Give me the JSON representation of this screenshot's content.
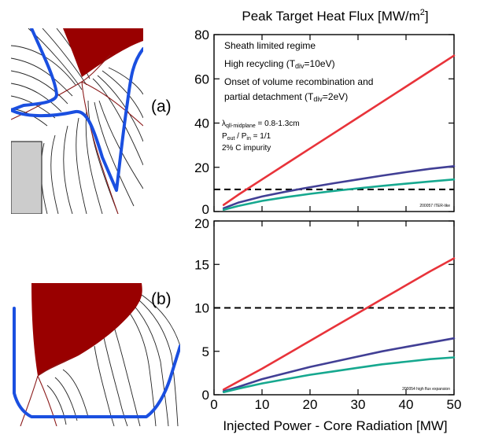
{
  "figure": {
    "title": "Peak Target Heat Flux [MW/m",
    "title_sup": "2",
    "title_close": "]",
    "xlabel": "Injected Power - Core Radiation [MW]"
  },
  "panels": {
    "a": {
      "label": "(a)"
    },
    "b": {
      "label": "(b)"
    }
  },
  "chart_data": [
    {
      "type": "line",
      "panel": "a",
      "xlim": [
        0,
        50
      ],
      "ylim": [
        0,
        80
      ],
      "xticks": [
        0,
        10,
        20,
        30,
        40,
        50
      ],
      "yticks": [
        0,
        20,
        40,
        60,
        80
      ],
      "grid": false,
      "reference_line": {
        "y": 10,
        "style": "dashed"
      },
      "legend_placement": "top-left",
      "series": [
        {
          "name": "Sheath limited regime",
          "color": "#e8333a",
          "x": [
            2,
            5,
            10,
            15,
            20,
            25,
            30,
            35,
            40,
            45,
            50
          ],
          "values": [
            3,
            7.5,
            14.5,
            21.5,
            28.5,
            35.5,
            42.5,
            49.5,
            56.5,
            63.5,
            70.5
          ]
        },
        {
          "name": "High recycling (Tdiv=10eV)",
          "color": "#413f95",
          "x": [
            2,
            5,
            10,
            15,
            20,
            25,
            30,
            35,
            40,
            45,
            50
          ],
          "values": [
            1.5,
            4,
            6.8,
            9,
            11,
            12.8,
            14.5,
            16.2,
            17.8,
            19.3,
            20.5
          ]
        },
        {
          "name": "Onset of volume recombination and partial detachment (Tdiv=2eV)",
          "color": "#16a88f",
          "x": [
            2,
            5,
            10,
            15,
            20,
            25,
            30,
            35,
            40,
            45,
            50
          ],
          "values": [
            0.8,
            2.5,
            4.8,
            6.5,
            8,
            9.3,
            10.5,
            11.6,
            12.6,
            13.6,
            14.5
          ]
        }
      ],
      "legend": {
        "sheath": "Sheath limited regime",
        "high_prefix": "High recycling (T",
        "high_sub": "div",
        "high_suffix": "=10eV)",
        "onset_line1": "Onset of volume recombination and",
        "onset_prefix": "partial detachment (T",
        "onset_sub": "div",
        "onset_suffix": "=2eV)"
      },
      "params": {
        "lambda_sym": "λ",
        "lambda_sub": "qll-midplane",
        "lambda_val": " = 0.8-1.3cm",
        "p_out": "P",
        "p_out_sub": "out",
        "p_mid": " / P",
        "p_in_sub": "in",
        "p_val": " = 1/1",
        "impurity": "2% C impurity"
      },
      "tag": "200057 ITER-like"
    },
    {
      "type": "line",
      "panel": "b",
      "xlim": [
        0,
        50
      ],
      "ylim": [
        0,
        20
      ],
      "xticks": [
        0,
        10,
        20,
        30,
        40,
        50
      ],
      "xtick_labels": [
        "0",
        "10",
        "20",
        "30",
        "40",
        "50"
      ],
      "yticks": [
        0,
        5,
        10,
        15,
        20
      ],
      "grid": false,
      "reference_line": {
        "y": 10,
        "style": "dashed"
      },
      "series": [
        {
          "color": "#e8333a",
          "x": [
            2,
            5,
            10,
            15,
            20,
            25,
            30,
            35,
            40,
            45,
            50
          ],
          "values": [
            0.6,
            1.5,
            3,
            4.6,
            6.2,
            7.8,
            9.4,
            11,
            12.6,
            14.2,
            15.7
          ]
        },
        {
          "color": "#413f95",
          "x": [
            2,
            5,
            10,
            15,
            20,
            25,
            30,
            35,
            40,
            45,
            50
          ],
          "values": [
            0.4,
            0.9,
            1.8,
            2.5,
            3.2,
            3.8,
            4.4,
            5,
            5.5,
            6,
            6.5
          ]
        },
        {
          "color": "#16a88f",
          "x": [
            2,
            5,
            10,
            15,
            20,
            25,
            30,
            35,
            40,
            45,
            50
          ],
          "values": [
            0.3,
            0.7,
            1.3,
            1.8,
            2.3,
            2.7,
            3.1,
            3.5,
            3.8,
            4.1,
            4.3
          ]
        }
      ],
      "tag": "200054 high flux expansion"
    }
  ],
  "colors": {
    "plasma_fill": "#990000",
    "separatrix": "#8b1a1a",
    "wall": "#1a4fe0",
    "flux_lines": "#222222",
    "dome": "#cccccc"
  }
}
